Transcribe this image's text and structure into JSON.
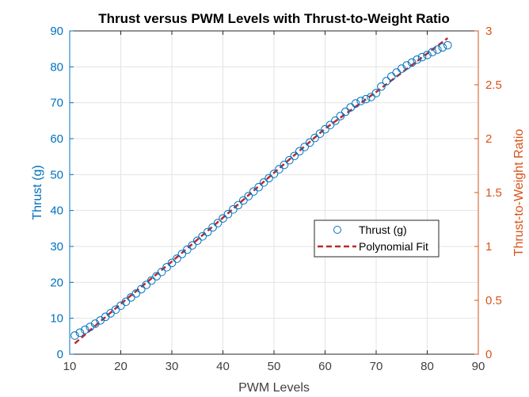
{
  "chart_data": {
    "type": "scatter",
    "title": "Thrust versus PWM Levels with Thrust-to-Weight Ratio",
    "xlabel": "PWM Levels",
    "ylabel": "Thrust (g)",
    "y2label": "Thrust-to-Weight Ratio",
    "xlim": [
      10,
      90
    ],
    "ylim": [
      0,
      90
    ],
    "y2lim": [
      0,
      3
    ],
    "xticks": [
      10,
      20,
      30,
      40,
      50,
      60,
      70,
      80,
      90
    ],
    "yticks": [
      0,
      10,
      20,
      30,
      40,
      50,
      60,
      70,
      80,
      90
    ],
    "y2ticks": [
      0,
      0.5,
      1,
      1.5,
      2,
      2.5,
      3
    ],
    "grid": true,
    "legend_position": "center-right",
    "colors": {
      "left_axis": "#0072BD",
      "right_axis": "#D95319",
      "markers": "#0072BD",
      "fit": "#C0282D",
      "grid": "#E3E3E3",
      "frame": "#262626"
    },
    "series": [
      {
        "name": "Thrust (g)",
        "style": "open-circle",
        "x": [
          11,
          12,
          13,
          14,
          15,
          16,
          17,
          18,
          19,
          20,
          21,
          22,
          23,
          24,
          25,
          26,
          27,
          28,
          29,
          30,
          31,
          32,
          33,
          34,
          35,
          36,
          37,
          38,
          39,
          40,
          41,
          42,
          43,
          44,
          45,
          46,
          47,
          48,
          49,
          50,
          51,
          52,
          53,
          54,
          55,
          56,
          57,
          58,
          59,
          60,
          61,
          62,
          63,
          64,
          65,
          66,
          67,
          68,
          69,
          70,
          71,
          72,
          73,
          74,
          75,
          76,
          77,
          78,
          79,
          80,
          81,
          82,
          83,
          84
        ],
        "y": [
          5.2,
          6.0,
          6.8,
          7.6,
          8.5,
          9.4,
          10.4,
          11.4,
          12.4,
          13.5,
          14.6,
          15.8,
          16.9,
          18.1,
          19.3,
          20.5,
          21.7,
          22.9,
          24.2,
          25.4,
          26.6,
          27.9,
          29.1,
          30.3,
          31.6,
          32.8,
          34.0,
          35.3,
          36.5,
          37.8,
          39.0,
          40.3,
          41.5,
          42.8,
          44.0,
          45.3,
          46.5,
          47.8,
          49.0,
          50.2,
          51.5,
          52.7,
          54.0,
          55.2,
          56.5,
          57.7,
          58.9,
          60.2,
          61.4,
          62.6,
          63.8,
          65.0,
          66.3,
          67.5,
          68.7,
          69.8,
          70.5,
          71.0,
          71.6,
          72.7,
          74.5,
          76.0,
          77.3,
          78.4,
          79.5,
          80.4,
          81.2,
          82.0,
          82.7,
          83.3,
          84.1,
          84.8,
          85.4,
          86.0
        ]
      },
      {
        "name": "Polynomial Fit",
        "style": "dashed-line",
        "x": [
          11,
          20,
          30,
          40,
          50,
          60,
          70,
          84
        ],
        "y": [
          3.0,
          14.0,
          25.8,
          38.0,
          50.5,
          62.8,
          73.0,
          88.0
        ]
      }
    ]
  }
}
